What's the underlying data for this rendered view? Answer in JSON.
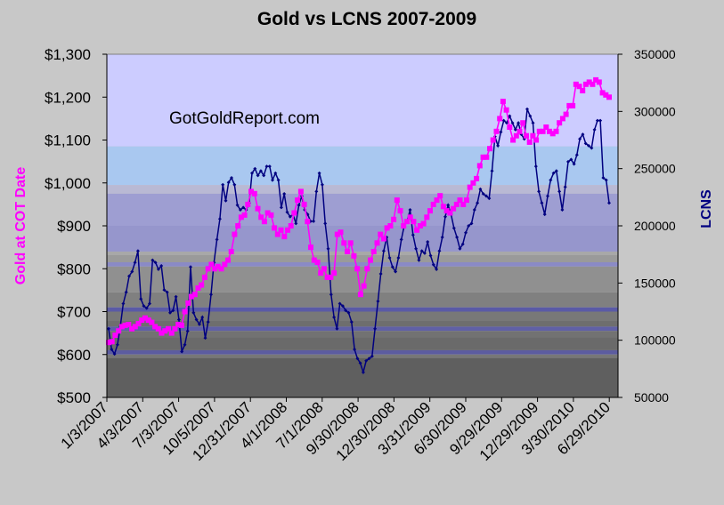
{
  "chart_data": {
    "type": "line",
    "title": "Gold vs LCNS  2007-2009",
    "watermark": "GotGoldReport.com",
    "y_left": {
      "label": "Gold at COT Date",
      "range": [
        500,
        1300
      ],
      "ticks": [
        "$500",
        "$600",
        "$700",
        "$800",
        "$900",
        "$1,000",
        "$1,100",
        "$1,200",
        "$1,300"
      ],
      "color": "#ff00ff"
    },
    "y_right": {
      "label": "LCNS",
      "range": [
        50000,
        350000
      ],
      "ticks": [
        "50000",
        "100000",
        "150000",
        "200000",
        "250000",
        "300000",
        "350000"
      ],
      "color": "#000080"
    },
    "x_tick_labels": [
      "1/3/2007",
      "4/3/2007",
      "7/3/2007",
      "10/5/2007",
      "12/31/2007",
      "4/1/2008",
      "7/1/2008",
      "9/30/2008",
      "12/30/2008",
      "3/31/2009",
      "6/30/2009",
      "9/29/2009",
      "12/29/2009",
      "3/30/2010",
      "6/29/2010"
    ],
    "grid": false,
    "legend": "none",
    "background_bands_gold": [
      {
        "from": 1085,
        "to": 1300,
        "color": "#ccccff"
      },
      {
        "from": 995,
        "to": 1085,
        "color": "#a9c8f0"
      },
      {
        "from": 975,
        "to": 995,
        "color": "#b9b9d4"
      },
      {
        "from": 900,
        "to": 975,
        "color": "#9e9ed2"
      },
      {
        "from": 840,
        "to": 900,
        "color": "#9696cc"
      },
      {
        "from": 832,
        "to": 840,
        "color": "#a8a8a8"
      },
      {
        "from": 815,
        "to": 832,
        "color": "#9a9a9a"
      },
      {
        "from": 805,
        "to": 815,
        "color": "#8a8ac6"
      },
      {
        "from": 745,
        "to": 805,
        "color": "#909090"
      },
      {
        "from": 710,
        "to": 745,
        "color": "#808080"
      },
      {
        "from": 700,
        "to": 710,
        "color": "#5a5aa6"
      },
      {
        "from": 680,
        "to": 700,
        "color": "#787878"
      },
      {
        "from": 665,
        "to": 680,
        "color": "#6e6e6e"
      },
      {
        "from": 655,
        "to": 665,
        "color": "#6060a6"
      },
      {
        "from": 640,
        "to": 655,
        "color": "#727272"
      },
      {
        "from": 610,
        "to": 640,
        "color": "#6a6a6a"
      },
      {
        "from": 600,
        "to": 610,
        "color": "#5c5ca0"
      },
      {
        "from": 592,
        "to": 600,
        "color": "#777777"
      },
      {
        "from": 500,
        "to": 592,
        "color": "#5f5f5f"
      }
    ],
    "series": [
      {
        "name": "Gold at COT Date",
        "axis": "left",
        "color": "#ff00ff",
        "marker": "square",
        "values": [
          628,
          630,
          645,
          655,
          665,
          668,
          670,
          660,
          665,
          672,
          680,
          685,
          680,
          675,
          665,
          660,
          650,
          655,
          660,
          650,
          660,
          670,
          668,
          700,
          720,
          735,
          740,
          755,
          762,
          780,
          800,
          810,
          800,
          805,
          800,
          810,
          820,
          840,
          880,
          900,
          920,
          925,
          950,
          980,
          975,
          940,
          920,
          910,
          930,
          925,
          895,
          880,
          890,
          875,
          890,
          900,
          930,
          960,
          980,
          950,
          910,
          850,
          820,
          815,
          790,
          800,
          780,
          780,
          790,
          880,
          885,
          860,
          840,
          860,
          830,
          800,
          740,
          760,
          800,
          820,
          840,
          860,
          880,
          870,
          895,
          900,
          915,
          960,
          935,
          900,
          910,
          920,
          910,
          890,
          900,
          905,
          920,
          935,
          950,
          960,
          970,
          945,
          935,
          930,
          940,
          950,
          960,
          950,
          960,
          990,
          1000,
          1010,
          1040,
          1060,
          1060,
          1080,
          1100,
          1120,
          1150,
          1190,
          1170,
          1130,
          1100,
          1110,
          1120,
          1140,
          1110,
          1095,
          1110,
          1100,
          1120,
          1120,
          1130,
          1120,
          1115,
          1120,
          1140,
          1150,
          1160,
          1180,
          1180,
          1230,
          1225,
          1215,
          1230,
          1235,
          1230,
          1240,
          1235,
          1210,
          1205,
          1200
        ]
      },
      {
        "name": "LCNS",
        "axis": "right",
        "color": "#000080",
        "marker": "diamond",
        "values": [
          110000,
          92000,
          88000,
          96000,
          112000,
          132000,
          142000,
          156000,
          160000,
          168000,
          178000,
          136000,
          130000,
          128000,
          132000,
          170000,
          168000,
          162000,
          165000,
          144000,
          142000,
          124000,
          126000,
          138000,
          118000,
          90000,
          96000,
          108000,
          164000,
          124000,
          118000,
          114000,
          120000,
          102000,
          116000,
          140000,
          168000,
          188000,
          206000,
          236000,
          222000,
          238000,
          242000,
          236000,
          218000,
          214000,
          216000,
          214000,
          220000,
          246000,
          250000,
          244000,
          248000,
          244000,
          252000,
          252000,
          240000,
          246000,
          240000,
          216000,
          228000,
          212000,
          208000,
          210000,
          202000,
          218000,
          226000,
          214000,
          210000,
          204000,
          204000,
          230000,
          246000,
          236000,
          202000,
          180000,
          140000,
          120000,
          110000,
          132000,
          130000,
          126000,
          124000,
          116000,
          92000,
          84000,
          80000,
          72000,
          82000,
          84000,
          86000,
          110000,
          134000,
          158000,
          178000,
          190000,
          172000,
          164000,
          160000,
          172000,
          188000,
          200000,
          204000,
          214000,
          192000,
          180000,
          170000,
          178000,
          176000,
          186000,
          174000,
          166000,
          162000,
          178000,
          190000,
          208000,
          218000,
          210000,
          198000,
          190000,
          180000,
          184000,
          194000,
          200000,
          202000,
          214000,
          220000,
          232000,
          228000,
          226000,
          224000,
          248000,
          278000,
          270000,
          282000,
          292000,
          290000,
          296000,
          290000,
          284000,
          290000,
          280000,
          276000,
          302000,
          296000,
          290000,
          252000,
          230000,
          220000,
          210000,
          226000,
          240000,
          246000,
          248000,
          230000,
          214000,
          234000,
          256000,
          258000,
          254000,
          262000,
          276000,
          280000,
          272000,
          270000,
          268000,
          284000,
          292000,
          292000,
          242000,
          240000,
          220000
        ]
      }
    ]
  }
}
